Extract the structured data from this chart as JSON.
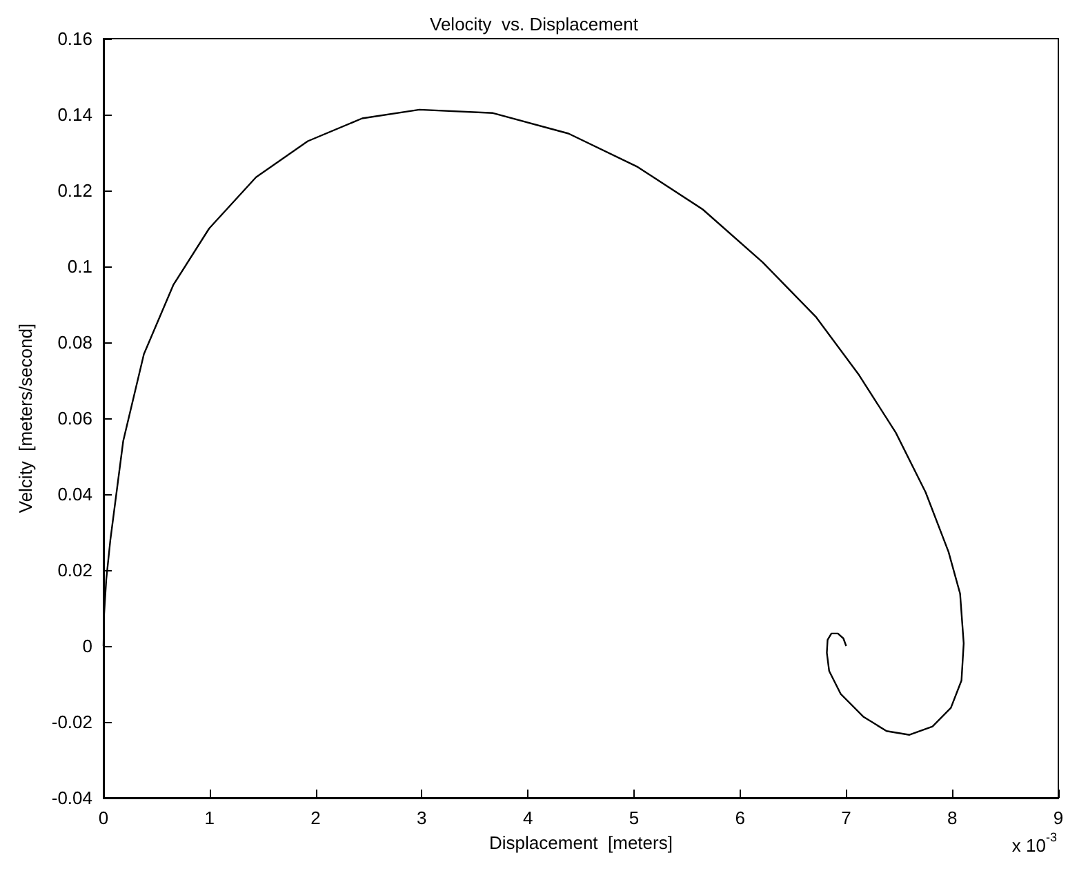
{
  "chart_data": {
    "type": "line",
    "title": "Velocity  vs. Displacement",
    "xlabel": "Displacement  [meters]",
    "ylabel": "Velcity  [meters/second]",
    "annotations": [
      "x 10$^{-3}$"
    ],
    "x": [
      0,
      0.006,
      0.026,
      0.065,
      0.186,
      0.381,
      0.658,
      0.996,
      1.438,
      1.926,
      2.438,
      2.978,
      3.671,
      4.383,
      5.035,
      5.649,
      6.212,
      6.718,
      7.121,
      7.468,
      7.749,
      7.965,
      8.074,
      8.108,
      8.087,
      7.987,
      7.814,
      7.597,
      7.381,
      7.165,
      6.948,
      6.84,
      6.818,
      6.825,
      6.861,
      6.922,
      6.974,
      7.0
    ],
    "series": [
      {
        "color": "#000000",
        "values": [
          0,
          0.0084,
          0.0175,
          0.028,
          0.054,
          0.0769,
          0.0951,
          0.11,
          0.1235,
          0.133,
          0.139,
          0.1413,
          0.1404,
          0.135,
          0.1262,
          0.115,
          0.1011,
          0.0866,
          0.0714,
          0.0562,
          0.0405,
          0.0248,
          0.0138,
          0.0007,
          -0.0091,
          -0.0163,
          -0.0212,
          -0.0234,
          -0.0224,
          -0.0187,
          -0.0126,
          -0.0066,
          -0.0018,
          0.0016,
          0.0033,
          0.0033,
          0.002,
          0
        ]
      }
    ],
    "xlim": [
      0,
      9
    ],
    "xticks": [
      0,
      1,
      2,
      3,
      4,
      5,
      6,
      7,
      8,
      9
    ],
    "ylim": [
      -0.04,
      0.16
    ],
    "yticks": [
      -0.04,
      -0.02,
      0,
      0.02,
      0.04,
      0.06,
      0.08,
      0.1,
      0.12,
      0.14,
      0.16
    ],
    "line_style": "solid"
  }
}
